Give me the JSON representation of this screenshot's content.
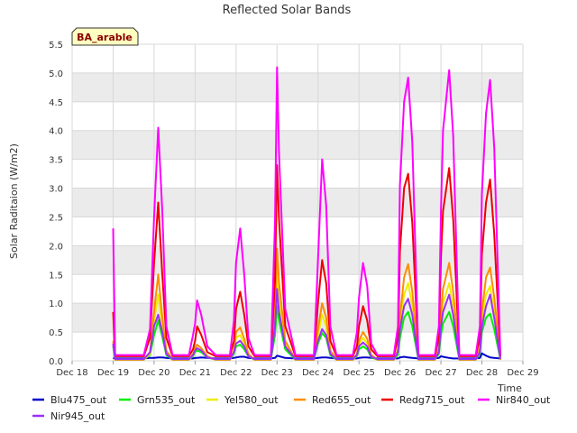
{
  "chart_data": {
    "type": "line",
    "title": "Reflected Solar Bands",
    "xlabel": "Time",
    "ylabel": "Solar Raditaion (W/m2)",
    "station_label": "BA_arable",
    "xlim": [
      18,
      29
    ],
    "ylim": [
      0,
      5.5
    ],
    "x_ticks": [
      18,
      19,
      20,
      21,
      22,
      23,
      24,
      25,
      26,
      27,
      28,
      29
    ],
    "x_tick_labels": [
      "Dec 18",
      "Dec 19",
      "Dec 20",
      "Dec 21",
      "Dec 22",
      "Dec 23",
      "Dec 24",
      "Dec 25",
      "Dec 26",
      "Dec 27",
      "Dec 28",
      "Dec 29"
    ],
    "y_ticks": [
      0.0,
      0.5,
      1.0,
      1.5,
      2.0,
      2.5,
      3.0,
      3.5,
      4.0,
      4.5,
      5.0,
      5.5
    ],
    "y_tick_labels": [
      "0.0",
      "0.5",
      "1.0",
      "1.5",
      "2.0",
      "2.5",
      "3.0",
      "3.5",
      "4.0",
      "4.5",
      "5.0",
      "5.5"
    ],
    "grid": true,
    "legend_position": "bottom",
    "x": [
      19.0,
      19.05,
      19.25,
      19.5,
      19.75,
      19.9,
      20.0,
      20.1,
      20.2,
      20.3,
      20.45,
      20.7,
      20.85,
      20.95,
      21.0,
      21.05,
      21.15,
      21.3,
      21.5,
      21.7,
      21.85,
      21.95,
      22.0,
      22.1,
      22.2,
      22.3,
      22.45,
      22.7,
      22.85,
      22.95,
      23.0,
      23.05,
      23.2,
      23.45,
      23.75,
      23.9,
      24.0,
      24.1,
      24.2,
      24.3,
      24.45,
      24.7,
      24.85,
      24.95,
      25.0,
      25.1,
      25.2,
      25.3,
      25.45,
      25.7,
      25.85,
      25.95,
      26.0,
      26.1,
      26.2,
      26.3,
      26.45,
      26.7,
      26.85,
      26.95,
      27.0,
      27.05,
      27.2,
      27.3,
      27.45,
      27.7,
      27.85,
      27.95,
      28.0,
      28.1,
      28.2,
      28.3,
      28.45
    ],
    "series": [
      {
        "name": "Blu475_out",
        "color": "#0000cc",
        "values": [
          0.05,
          0.04,
          0.04,
          0.04,
          0.04,
          0.05,
          0.05,
          0.06,
          0.06,
          0.05,
          0.04,
          0.04,
          0.04,
          0.04,
          0.05,
          0.05,
          0.06,
          0.05,
          0.04,
          0.04,
          0.04,
          0.05,
          0.06,
          0.07,
          0.07,
          0.05,
          0.04,
          0.04,
          0.04,
          0.05,
          0.09,
          0.08,
          0.05,
          0.04,
          0.04,
          0.04,
          0.05,
          0.06,
          0.06,
          0.05,
          0.04,
          0.04,
          0.04,
          0.04,
          0.05,
          0.06,
          0.06,
          0.05,
          0.04,
          0.04,
          0.04,
          0.04,
          0.06,
          0.07,
          0.06,
          0.05,
          0.04,
          0.04,
          0.04,
          0.05,
          0.08,
          0.07,
          0.05,
          0.04,
          0.04,
          0.04,
          0.04,
          0.05,
          0.13,
          0.09,
          0.06,
          0.05,
          0.04
        ]
      },
      {
        "name": "Grn535_out",
        "color": "#00ee00",
        "values": [
          0.25,
          0.02,
          0.02,
          0.02,
          0.02,
          0.1,
          0.45,
          0.7,
          0.42,
          0.1,
          0.02,
          0.02,
          0.02,
          0.08,
          0.15,
          0.18,
          0.15,
          0.06,
          0.02,
          0.02,
          0.02,
          0.12,
          0.25,
          0.28,
          0.2,
          0.08,
          0.02,
          0.02,
          0.02,
          0.45,
          0.95,
          0.7,
          0.2,
          0.02,
          0.02,
          0.02,
          0.3,
          0.48,
          0.4,
          0.1,
          0.02,
          0.02,
          0.02,
          0.08,
          0.2,
          0.25,
          0.2,
          0.06,
          0.02,
          0.02,
          0.02,
          0.1,
          0.4,
          0.75,
          0.85,
          0.6,
          0.02,
          0.02,
          0.02,
          0.12,
          0.45,
          0.65,
          0.85,
          0.6,
          0.02,
          0.02,
          0.02,
          0.12,
          0.5,
          0.75,
          0.82,
          0.55,
          0.02
        ]
      },
      {
        "name": "Yel580_out",
        "color": "#eeee00",
        "values": [
          0.3,
          0.02,
          0.02,
          0.02,
          0.02,
          0.12,
          0.7,
          1.15,
          0.6,
          0.15,
          0.02,
          0.02,
          0.02,
          0.1,
          0.18,
          0.22,
          0.18,
          0.07,
          0.02,
          0.02,
          0.02,
          0.15,
          0.4,
          0.45,
          0.3,
          0.1,
          0.02,
          0.02,
          0.02,
          0.65,
          1.6,
          1.1,
          0.3,
          0.02,
          0.02,
          0.02,
          0.45,
          0.8,
          0.6,
          0.15,
          0.02,
          0.02,
          0.02,
          0.1,
          0.3,
          0.4,
          0.3,
          0.08,
          0.02,
          0.02,
          0.02,
          0.15,
          0.6,
          1.15,
          1.35,
          0.95,
          0.02,
          0.02,
          0.02,
          0.18,
          0.65,
          1.0,
          1.35,
          0.95,
          0.02,
          0.02,
          0.02,
          0.18,
          0.7,
          1.15,
          1.3,
          0.85,
          0.02
        ]
      },
      {
        "name": "Red655_out",
        "color": "#ff8c00",
        "values": [
          0.35,
          0.02,
          0.02,
          0.02,
          0.02,
          0.15,
          0.85,
          1.5,
          0.75,
          0.18,
          0.02,
          0.02,
          0.02,
          0.12,
          0.22,
          0.28,
          0.22,
          0.08,
          0.02,
          0.02,
          0.02,
          0.18,
          0.5,
          0.58,
          0.38,
          0.12,
          0.02,
          0.02,
          0.02,
          0.8,
          1.95,
          1.35,
          0.35,
          0.02,
          0.02,
          0.02,
          0.55,
          1.0,
          0.75,
          0.18,
          0.02,
          0.02,
          0.02,
          0.12,
          0.35,
          0.5,
          0.38,
          0.1,
          0.02,
          0.02,
          0.02,
          0.2,
          0.75,
          1.45,
          1.68,
          1.2,
          0.02,
          0.02,
          0.02,
          0.22,
          0.8,
          1.25,
          1.7,
          1.2,
          0.02,
          0.02,
          0.02,
          0.22,
          0.85,
          1.45,
          1.62,
          1.1,
          0.02
        ]
      },
      {
        "name": "Redg715_out",
        "color": "#ee0000",
        "values": [
          0.85,
          0.08,
          0.08,
          0.08,
          0.08,
          0.4,
          1.7,
          2.75,
          1.5,
          0.4,
          0.08,
          0.08,
          0.08,
          0.2,
          0.35,
          0.6,
          0.45,
          0.15,
          0.08,
          0.08,
          0.08,
          0.35,
          0.9,
          1.2,
          0.8,
          0.25,
          0.08,
          0.08,
          0.08,
          1.4,
          3.4,
          2.45,
          0.6,
          0.08,
          0.08,
          0.08,
          1.0,
          1.75,
          1.35,
          0.35,
          0.08,
          0.08,
          0.08,
          0.25,
          0.6,
          0.95,
          0.7,
          0.2,
          0.08,
          0.08,
          0.08,
          0.4,
          1.9,
          3.0,
          3.25,
          2.4,
          0.08,
          0.08,
          0.08,
          0.4,
          1.8,
          2.6,
          3.35,
          2.45,
          0.08,
          0.08,
          0.08,
          0.4,
          1.85,
          2.75,
          3.15,
          2.2,
          0.08
        ]
      },
      {
        "name": "Nir840_out",
        "color": "#ff00ff",
        "values": [
          2.3,
          0.1,
          0.1,
          0.1,
          0.1,
          0.55,
          2.5,
          4.05,
          2.6,
          0.6,
          0.1,
          0.1,
          0.1,
          0.45,
          0.65,
          1.05,
          0.8,
          0.25,
          0.1,
          0.1,
          0.1,
          0.7,
          1.7,
          2.3,
          1.5,
          0.4,
          0.1,
          0.1,
          0.1,
          2.4,
          5.1,
          3.6,
          0.9,
          0.1,
          0.1,
          0.1,
          1.75,
          3.5,
          2.7,
          0.6,
          0.1,
          0.1,
          0.1,
          0.5,
          1.1,
          1.7,
          1.3,
          0.3,
          0.1,
          0.1,
          0.1,
          0.6,
          3.05,
          4.5,
          4.92,
          3.8,
          0.1,
          0.1,
          0.1,
          0.6,
          2.6,
          4.0,
          5.05,
          3.9,
          0.1,
          0.1,
          0.1,
          0.6,
          2.9,
          4.3,
          4.88,
          3.7,
          0.1
        ]
      },
      {
        "name": "Nir945_out",
        "color": "#9b30ff",
        "values": [
          0.3,
          0.03,
          0.03,
          0.03,
          0.03,
          0.15,
          0.6,
          0.8,
          0.5,
          0.12,
          0.03,
          0.03,
          0.03,
          0.1,
          0.18,
          0.22,
          0.18,
          0.06,
          0.03,
          0.03,
          0.03,
          0.15,
          0.3,
          0.35,
          0.25,
          0.08,
          0.03,
          0.03,
          0.03,
          0.6,
          1.25,
          0.85,
          0.25,
          0.03,
          0.03,
          0.03,
          0.35,
          0.55,
          0.45,
          0.12,
          0.03,
          0.03,
          0.03,
          0.1,
          0.25,
          0.32,
          0.25,
          0.07,
          0.03,
          0.03,
          0.03,
          0.15,
          0.55,
          0.95,
          1.08,
          0.8,
          0.03,
          0.03,
          0.03,
          0.15,
          0.6,
          0.85,
          1.15,
          0.8,
          0.03,
          0.03,
          0.03,
          0.15,
          0.6,
          0.95,
          1.15,
          0.75,
          0.03
        ]
      }
    ]
  }
}
